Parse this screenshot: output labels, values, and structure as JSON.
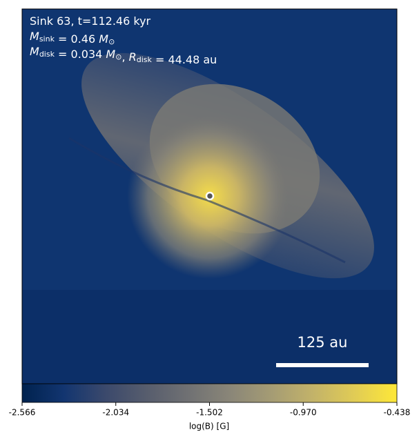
{
  "chart_data": {
    "type": "image",
    "annotations": [
      [
        {
          "text": "Sink 63, t=112.46 kyr"
        }
      ],
      [
        {
          "text": "M",
          "sub": "sink"
        },
        {
          "text": " = 0.46 "
        },
        {
          "text": "M",
          "sub": "⊙"
        }
      ],
      [
        {
          "text": "M",
          "sub": "disk"
        },
        {
          "text": " = 0.034 "
        },
        {
          "text": "M",
          "sub": "⊙"
        },
        {
          "text": ", "
        },
        {
          "text": "R",
          "sub": "disk"
        },
        {
          "text": " = 44.48 au"
        }
      ]
    ],
    "scale_bar": "125 au",
    "colorbar": {
      "label": "log(B) [G]",
      "clim": [
        -2.566,
        -0.438
      ],
      "ticks": [
        -2.566,
        -2.034,
        -1.502,
        {
          "value": -0.97,
          "label": "-0.970"
        },
        -0.438
      ],
      "colors": [
        "#00224e",
        "#123570",
        "#3b496c",
        "#575d6d",
        "#707173",
        "#8a8678",
        "#a59c74",
        "#c3b369",
        "#e1cc55",
        "#fee838"
      ]
    }
  }
}
